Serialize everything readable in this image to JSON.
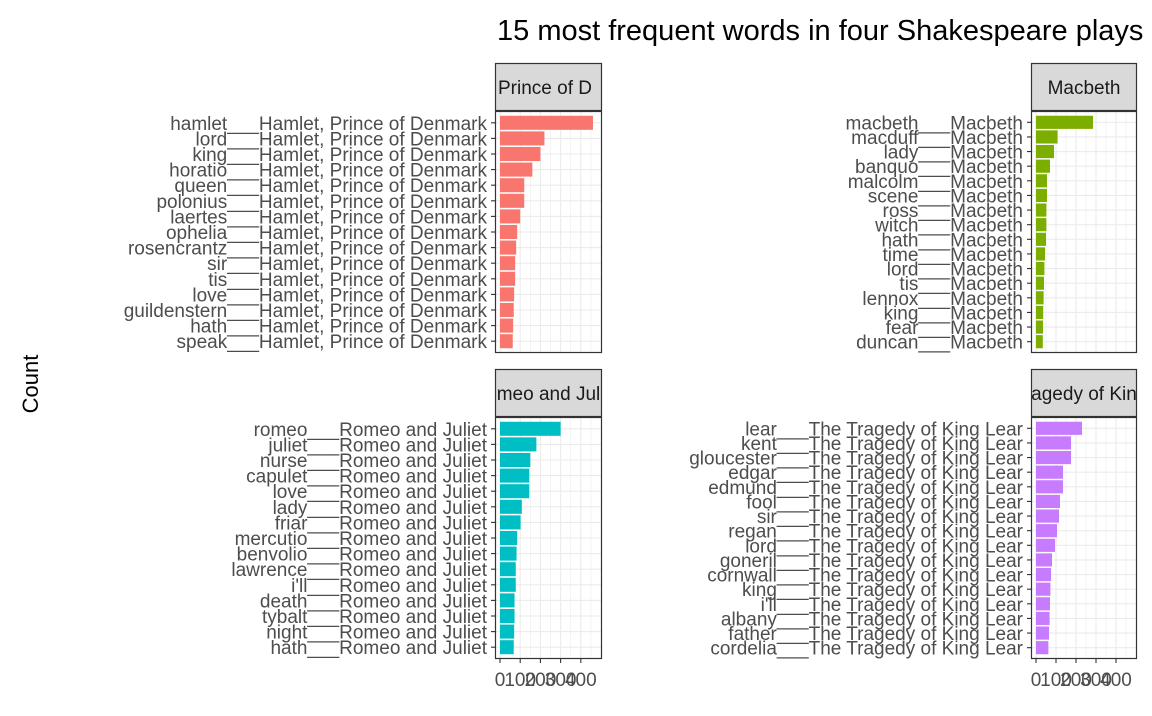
{
  "title": "15 most frequent words in four Shakespeare plays",
  "ylabel": "Count",
  "colors": {
    "hamlet": "#F8766D",
    "macbeth": "#7CAE00",
    "romeo": "#00BFC4",
    "lear": "#C77CFF",
    "strip_bg": "#D9D9D9",
    "grid": "#EBEBEB",
    "axis_text": "#4D4D4D"
  },
  "chart_data": [
    {
      "type": "bar",
      "facet": "Hamlet, Prince of Denmark",
      "strip_visible": "Prince of D",
      "orientation": "horizontal",
      "categories": [
        "hamlet",
        "lord",
        "king",
        "horatio",
        "queen",
        "polonius",
        "laertes",
        "ophelia",
        "rosencrantz",
        "sir",
        "tis",
        "love",
        "guildenstern",
        "hath",
        "speak"
      ],
      "tick_labels": [
        "hamlet___Hamlet, Prince of Denmark",
        "lord___Hamlet, Prince of Denmark",
        "king___Hamlet, Prince of Denmark",
        "horatio___Hamlet, Prince of Denmark",
        "queen___Hamlet, Prince of Denmark",
        "polonius___Hamlet, Prince of Denmark",
        "laertes___Hamlet, Prince of Denmark",
        "ophelia___Hamlet, Prince of Denmark",
        "rosencrantz___Hamlet, Prince of Denmark",
        "sir___Hamlet, Prince of Denmark",
        "tis___Hamlet, Prince of Denmark",
        "love___Hamlet, Prince of Denmark",
        "guildenstern___Hamlet, Prince of Denmark",
        "hath___Hamlet, Prince of Denmark",
        "speak___Hamlet, Prince of Denmark"
      ],
      "values": [
        460,
        220,
        200,
        160,
        120,
        120,
        100,
        85,
        80,
        75,
        75,
        70,
        68,
        65,
        63
      ],
      "color_key": "hamlet",
      "xlim": [
        0,
        480
      ]
    },
    {
      "type": "bar",
      "facet": "Macbeth",
      "strip_visible": "Macbeth",
      "orientation": "horizontal",
      "categories": [
        "macbeth",
        "macduff",
        "lady",
        "banquo",
        "malcolm",
        "scene",
        "ross",
        "witch",
        "hath",
        "time",
        "lord",
        "tis",
        "lennox",
        "king",
        "fear",
        "duncan"
      ],
      "tick_labels": [
        "macbeth___Macbeth",
        "macduff___Macbeth",
        "lady___Macbeth",
        "banquo___Macbeth",
        "malcolm___Macbeth",
        "scene___Macbeth",
        "ross___Macbeth",
        "witch___Macbeth",
        "hath___Macbeth",
        "time___Macbeth",
        "lord___Macbeth",
        "tis___Macbeth",
        "lennox___Macbeth",
        "king___Macbeth",
        "fear___Macbeth",
        "duncan___Macbeth"
      ],
      "values": [
        285,
        108,
        90,
        70,
        55,
        55,
        52,
        52,
        50,
        45,
        42,
        40,
        38,
        36,
        35,
        34
      ],
      "color_key": "macbeth",
      "xlim": [
        0,
        480
      ]
    },
    {
      "type": "bar",
      "facet": "Romeo and Juliet",
      "strip_visible": "meo and Jul",
      "orientation": "horizontal",
      "categories": [
        "romeo",
        "juliet",
        "nurse",
        "capulet",
        "love",
        "lady",
        "friar",
        "mercutio",
        "benvolio",
        "lawrence",
        "i'll",
        "death",
        "tybalt",
        "night",
        "hath"
      ],
      "tick_labels": [
        "romeo___Romeo and Juliet",
        "juliet___Romeo and Juliet",
        "nurse___Romeo and Juliet",
        "capulet___Romeo and Juliet",
        "love___Romeo and Juliet",
        "lady___Romeo and Juliet",
        "friar___Romeo and Juliet",
        "mercutio___Romeo and Juliet",
        "benvolio___Romeo and Juliet",
        "lawrence___Romeo and Juliet",
        "i'll___Romeo and Juliet",
        "death___Romeo and Juliet",
        "tybalt___Romeo and Juliet",
        "night___Romeo and Juliet",
        "hath___Romeo and Juliet"
      ],
      "values": [
        300,
        180,
        150,
        145,
        145,
        108,
        102,
        85,
        82,
        78,
        78,
        72,
        72,
        70,
        68
      ],
      "color_key": "romeo",
      "xlim": [
        0,
        480
      ]
    },
    {
      "type": "bar",
      "facet": "The Tragedy of King Lear",
      "strip_visible": "agedy of Kin",
      "orientation": "horizontal",
      "categories": [
        "lear",
        "kent",
        "gloucester",
        "edgar",
        "edmund",
        "fool",
        "sir",
        "regan",
        "lord",
        "goneril",
        "cornwall",
        "king",
        "i'll",
        "albany",
        "father",
        "cordelia"
      ],
      "tick_labels": [
        "lear___The Tragedy of King Lear",
        "kent___The Tragedy of King Lear",
        "gloucester___The Tragedy of King Lear",
        "edgar___The Tragedy of King Lear",
        "edmund___The Tragedy of King Lear",
        "fool___The Tragedy of King Lear",
        "sir___The Tragedy of King Lear",
        "regan___The Tragedy of King Lear",
        "lord___The Tragedy of King Lear",
        "goneril___The Tragedy of King Lear",
        "cornwall___The Tragedy of King Lear",
        "king___The Tragedy of King Lear",
        "i'll___The Tragedy of King Lear",
        "albany___The Tragedy of King Lear",
        "father___The Tragedy of King Lear",
        "cordelia___The Tragedy of King Lear"
      ],
      "values": [
        230,
        175,
        175,
        135,
        135,
        120,
        115,
        105,
        95,
        80,
        75,
        72,
        70,
        68,
        65,
        62
      ],
      "color_key": "lear",
      "xlim": [
        0,
        480
      ]
    }
  ],
  "x_tick_values": [
    0,
    100,
    200,
    300,
    400
  ],
  "x_tick_labels": [
    "0",
    "100",
    "200",
    "300",
    "400"
  ]
}
